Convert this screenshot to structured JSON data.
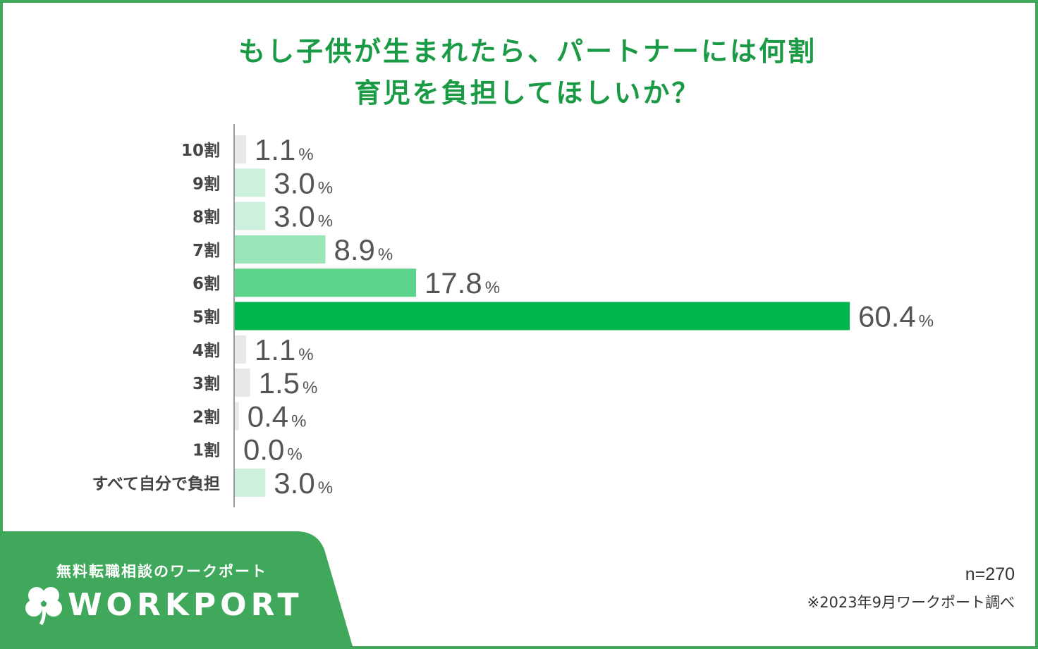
{
  "title_lines": [
    "もし子供が生まれたら、パートナーには何割",
    "育児を負担してほしいか？"
  ],
  "chart_data": {
    "type": "bar",
    "orientation": "horizontal",
    "title": "もし子供が生まれたら、パートナーには何割育児を負担してほしいか？",
    "categories": [
      "10割",
      "9割",
      "8割",
      "7割",
      "6割",
      "5割",
      "4割",
      "3割",
      "2割",
      "1割",
      "すべて自分で負担"
    ],
    "values": [
      1.1,
      3.0,
      3.0,
      8.9,
      17.8,
      60.4,
      1.1,
      1.5,
      0.4,
      0.0,
      3.0
    ],
    "value_labels": [
      "1.1",
      "3.0",
      "3.0",
      "8.9",
      "17.8",
      "60.4",
      "1.1",
      "1.5",
      "0.4",
      "0.0",
      "3.0"
    ],
    "unit": "%",
    "bar_colors": [
      "#e8e8e8",
      "#cdf0dc",
      "#cdf0dc",
      "#9be6b9",
      "#5cd48c",
      "#00b54b",
      "#e8e8e8",
      "#e8e8e8",
      "#e8e8e8",
      "#e8e8e8",
      "#cdf0dc"
    ],
    "xlim": [
      0,
      60.4
    ],
    "grid": false,
    "legend": "none"
  },
  "colors": {
    "title": "#1b9a46",
    "frame": "#3fa85a",
    "axis_label": "#444444",
    "value_label": "#555555"
  },
  "footer": {
    "tagline": "無料転職相談のワークポート",
    "logo_text": "WORKPORT",
    "logo_icon": "clover-icon",
    "sample_size": "n=270",
    "survey_note": "※2023年9月ワークポート調べ"
  }
}
